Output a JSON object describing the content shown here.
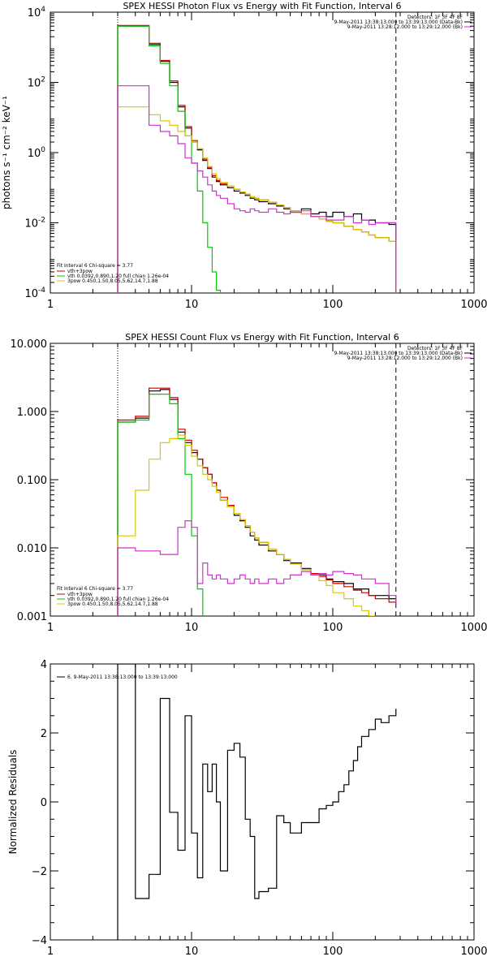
{
  "chart_data": [
    {
      "type": "line",
      "title": "SPEX HESSI Photon Flux vs Energy with Fit Function, Interval 6",
      "ylabel": "photons s⁻¹ cm⁻² keV⁻¹",
      "xlabel": "",
      "x_scale": "log",
      "y_scale": "log",
      "xlim": [
        1,
        1000
      ],
      "ylim": [
        0.0001,
        10000
      ],
      "x_ticks": [
        {
          "v": 1,
          "label": "1"
        },
        {
          "v": 10,
          "label": "10"
        },
        {
          "v": 100,
          "label": "100"
        },
        {
          "v": 1000,
          "label": "1000"
        }
      ],
      "y_ticks": [
        {
          "v": 0.0001,
          "base": "10",
          "exp": "-4"
        },
        {
          "v": 0.01,
          "base": "10",
          "exp": "-2"
        },
        {
          "v": 1,
          "base": "10",
          "exp": "0"
        },
        {
          "v": 100,
          "base": "10",
          "exp": "2"
        },
        {
          "v": 10000,
          "base": "10",
          "exp": "4"
        }
      ],
      "header_text": [
        "Detectors: 1F 3F 4F 8F",
        "9-May-2011 13:38:13.000 to 13:39:13.000 (Data-Bk)",
        "9-May-2011 13:28:12.000 to 13:29:12.000 (Bk)"
      ],
      "legend_title": "Fit Interval  6    Chi-square = 3.77",
      "legend": [
        {
          "label": "vth+3pow",
          "color": "#cc0000"
        },
        {
          "label": "vth 0.0392,0.890,1.20  full chian 1.26e-04",
          "color": "#00cc00"
        },
        {
          "label": "3pow 0.450,1.50,8.05,5.62,14.7,1.88",
          "color": "#d8c800"
        }
      ],
      "vlines": [
        {
          "x": 3.0,
          "style": "dotted"
        },
        {
          "x": 280,
          "style": "dashed"
        }
      ],
      "series": [
        {
          "name": "Data-Bk",
          "color": "#000000",
          "step": true,
          "x": [
            3,
            4,
            5,
            6,
            7,
            8,
            9,
            10,
            11,
            12,
            13,
            14,
            15,
            16,
            18,
            20,
            22,
            24,
            26,
            28,
            30,
            35,
            40,
            45,
            50,
            60,
            70,
            80,
            90,
            100,
            120,
            140,
            160,
            180,
            200,
            250,
            280
          ],
          "y": [
            4000,
            4000,
            1200,
            400,
            100,
            20,
            5,
            2,
            1.2,
            0.6,
            0.35,
            0.2,
            0.15,
            0.12,
            0.1,
            0.08,
            0.07,
            0.06,
            0.05,
            0.045,
            0.04,
            0.035,
            0.03,
            0.025,
            0.02,
            0.025,
            0.018,
            0.02,
            0.015,
            0.02,
            0.015,
            0.018,
            0.012,
            0.012,
            0.01,
            0.009,
            0.0001
          ]
        },
        {
          "name": "vth+3pow",
          "color": "#cc0000",
          "step": true,
          "x": [
            3,
            4,
            5,
            6,
            7,
            8,
            9,
            10,
            11,
            12,
            13,
            14,
            15,
            16,
            18,
            20,
            22,
            24,
            26,
            28,
            30,
            35,
            40,
            45,
            50,
            60,
            70,
            80,
            90,
            100,
            120,
            140,
            160,
            180,
            200,
            250,
            280
          ],
          "y": [
            4200,
            4200,
            1300,
            420,
            110,
            22,
            5.5,
            2.2,
            1.3,
            0.65,
            0.38,
            0.22,
            0.16,
            0.13,
            0.11,
            0.09,
            0.075,
            0.065,
            0.055,
            0.05,
            0.045,
            0.038,
            0.032,
            0.027,
            0.022,
            0.018,
            0.015,
            0.013,
            0.011,
            0.01,
            0.008,
            0.0065,
            0.0055,
            0.0045,
            0.0038,
            0.003,
            0.0001
          ]
        },
        {
          "name": "vth",
          "color": "#00cc00",
          "step": true,
          "x": [
            3,
            4,
            5,
            6,
            7,
            8,
            9,
            10,
            11,
            12,
            13,
            14,
            15,
            16
          ],
          "y": [
            4000,
            4000,
            1100,
            350,
            80,
            15,
            3,
            0.5,
            0.08,
            0.01,
            0.002,
            0.0004,
            0.00012,
            0.0001
          ]
        },
        {
          "name": "3pow",
          "color": "#d8c800",
          "step": true,
          "x": [
            3,
            4,
            5,
            6,
            7,
            8,
            9,
            10,
            11,
            12,
            13,
            14,
            15,
            16,
            18,
            20,
            22,
            24,
            26,
            28,
            30,
            35,
            40,
            45,
            50,
            60,
            70,
            80,
            90,
            100,
            120,
            140,
            160,
            180,
            200,
            250,
            280
          ],
          "y": [
            20,
            20,
            12,
            8,
            6,
            4,
            3,
            2,
            1.3,
            0.7,
            0.4,
            0.25,
            0.18,
            0.14,
            0.11,
            0.09,
            0.075,
            0.065,
            0.055,
            0.05,
            0.045,
            0.038,
            0.032,
            0.027,
            0.022,
            0.018,
            0.015,
            0.013,
            0.011,
            0.01,
            0.008,
            0.0065,
            0.0055,
            0.0045,
            0.0038,
            0.003,
            0.0001
          ]
        },
        {
          "name": "Bk",
          "color": "#cc33cc",
          "step": true,
          "x": [
            3,
            4,
            5,
            6,
            7,
            8,
            9,
            10,
            11,
            12,
            13,
            14,
            15,
            16,
            18,
            20,
            22,
            24,
            26,
            28,
            30,
            35,
            40,
            45,
            50,
            60,
            70,
            80,
            90,
            100,
            120,
            140,
            160,
            180,
            200,
            250,
            280
          ],
          "y": [
            80,
            80,
            6,
            4,
            3,
            1.8,
            0.7,
            0.5,
            0.3,
            0.2,
            0.12,
            0.08,
            0.06,
            0.05,
            0.035,
            0.025,
            0.022,
            0.02,
            0.025,
            0.022,
            0.02,
            0.025,
            0.02,
            0.018,
            0.02,
            0.022,
            0.015,
            0.015,
            0.012,
            0.012,
            0.015,
            0.01,
            0.012,
            0.009,
            0.01,
            0.01,
            0.0001
          ]
        }
      ]
    },
    {
      "type": "line",
      "title": "SPEX HESSI Count Flux vs Energy with Fit Function, Interval 6",
      "ylabel": "",
      "xlabel": "",
      "x_scale": "log",
      "y_scale": "log",
      "xlim": [
        1,
        1000
      ],
      "ylim": [
        0.001,
        10
      ],
      "x_ticks": [
        {
          "v": 1,
          "label": "1"
        },
        {
          "v": 10,
          "label": "10"
        },
        {
          "v": 100,
          "label": "100"
        },
        {
          "v": 1000,
          "label": "1000"
        }
      ],
      "y_ticks": [
        {
          "v": 0.001,
          "label": "0.001"
        },
        {
          "v": 0.01,
          "label": "0.010"
        },
        {
          "v": 0.1,
          "label": "0.100"
        },
        {
          "v": 1,
          "label": "1.000"
        },
        {
          "v": 10,
          "label": "10.000"
        }
      ],
      "header_text": [
        "Detectors: 1F 3F 4F 8F",
        "9-May-2011 13:38:13.000 to 13:39:13.000 (Data-Bk)",
        "9-May-2011 13:28:12.000 to 13:29:12.000 (Bk)"
      ],
      "legend_title": "Fit Interval  6    Chi-square = 3.77",
      "legend": [
        {
          "label": "vth+3pow",
          "color": "#cc0000"
        },
        {
          "label": "vth 0.0392,0.890,1.20  full chian 1.26e-04",
          "color": "#00cc00"
        },
        {
          "label": "3pow 0.450,1.50,8.05,5.62,14.7,1.88",
          "color": "#d8c800"
        }
      ],
      "vlines": [
        {
          "x": 3.0,
          "style": "dotted"
        },
        {
          "x": 280,
          "style": "dashed"
        }
      ],
      "series": [
        {
          "name": "Data-Bk",
          "color": "#000000",
          "step": true,
          "x": [
            3,
            4,
            5,
            6,
            7,
            8,
            9,
            10,
            11,
            12,
            13,
            14,
            15,
            16,
            18,
            20,
            22,
            24,
            26,
            28,
            30,
            35,
            40,
            45,
            50,
            60,
            70,
            80,
            90,
            100,
            120,
            140,
            160,
            180,
            200,
            250,
            280
          ],
          "y": [
            0.7,
            0.8,
            2.0,
            2.1,
            1.5,
            0.5,
            0.35,
            0.25,
            0.2,
            0.15,
            0.12,
            0.09,
            0.07,
            0.05,
            0.04,
            0.03,
            0.025,
            0.02,
            0.015,
            0.013,
            0.011,
            0.009,
            0.008,
            0.0065,
            0.006,
            0.005,
            0.004,
            0.004,
            0.0035,
            0.0032,
            0.003,
            0.0025,
            0.0025,
            0.002,
            0.002,
            0.0018,
            0.0015
          ]
        },
        {
          "name": "vth+3pow",
          "color": "#cc0000",
          "step": true,
          "x": [
            3,
            4,
            5,
            6,
            7,
            8,
            9,
            10,
            11,
            12,
            13,
            14,
            15,
            16,
            18,
            20,
            22,
            24,
            26,
            28,
            30,
            35,
            40,
            45,
            50,
            60,
            70,
            80,
            90,
            100,
            120,
            140,
            160,
            180,
            200,
            250,
            280
          ],
          "y": [
            0.75,
            0.85,
            2.2,
            2.2,
            1.6,
            0.55,
            0.38,
            0.27,
            0.2,
            0.15,
            0.12,
            0.09,
            0.07,
            0.055,
            0.042,
            0.032,
            0.026,
            0.021,
            0.017,
            0.014,
            0.012,
            0.0095,
            0.008,
            0.0068,
            0.0058,
            0.0048,
            0.0042,
            0.0038,
            0.0034,
            0.003,
            0.0027,
            0.0024,
            0.0022,
            0.002,
            0.0018,
            0.0016,
            0.0015
          ]
        },
        {
          "name": "vth",
          "color": "#00cc00",
          "step": true,
          "x": [
            3,
            4,
            5,
            6,
            7,
            8,
            9,
            10,
            11,
            12
          ],
          "y": [
            0.7,
            0.75,
            1.8,
            1.8,
            1.3,
            0.4,
            0.12,
            0.015,
            0.0025,
            0.001
          ]
        },
        {
          "name": "3pow",
          "color": "#d8c800",
          "step": true,
          "x": [
            3,
            4,
            5,
            6,
            7,
            8,
            9,
            10,
            11,
            12,
            13,
            14,
            15,
            16,
            18,
            20,
            22,
            24,
            26,
            28,
            30,
            35,
            40,
            45,
            50,
            60,
            70,
            80,
            90,
            100,
            120,
            140,
            160,
            180,
            200
          ],
          "y": [
            0.015,
            0.07,
            0.2,
            0.35,
            0.4,
            0.45,
            0.32,
            0.22,
            0.16,
            0.12,
            0.1,
            0.08,
            0.065,
            0.05,
            0.04,
            0.032,
            0.026,
            0.021,
            0.017,
            0.014,
            0.012,
            0.0095,
            0.008,
            0.0068,
            0.0058,
            0.0048,
            0.004,
            0.0033,
            0.0028,
            0.0022,
            0.0018,
            0.0014,
            0.0012,
            0.001,
            0.001
          ]
        },
        {
          "name": "Bk",
          "color": "#cc33cc",
          "step": true,
          "x": [
            3,
            4,
            5,
            6,
            7,
            8,
            9,
            10,
            11,
            12,
            13,
            14,
            15,
            16,
            18,
            20,
            22,
            24,
            26,
            28,
            30,
            35,
            40,
            45,
            50,
            60,
            70,
            80,
            90,
            100,
            120,
            140,
            160,
            180,
            200,
            250,
            280
          ],
          "y": [
            0.01,
            0.009,
            0.009,
            0.008,
            0.008,
            0.02,
            0.025,
            0.02,
            0.003,
            0.006,
            0.004,
            0.0035,
            0.004,
            0.0035,
            0.003,
            0.0035,
            0.004,
            0.0035,
            0.003,
            0.0035,
            0.003,
            0.0035,
            0.003,
            0.0035,
            0.004,
            0.0045,
            0.004,
            0.0042,
            0.004,
            0.0045,
            0.0042,
            0.004,
            0.0035,
            0.0035,
            0.003,
            0.002,
            0.0015
          ]
        }
      ]
    },
    {
      "type": "line",
      "title": "",
      "ylabel": "Normalized Residuals",
      "xlabel": "",
      "x_scale": "log",
      "y_scale": "linear",
      "xlim": [
        1,
        1000
      ],
      "ylim": [
        -4,
        4
      ],
      "x_ticks": [
        {
          "v": 1,
          "label": "1"
        },
        {
          "v": 10,
          "label": "10"
        },
        {
          "v": 100,
          "label": "100"
        },
        {
          "v": 1000,
          "label": "1000"
        }
      ],
      "y_ticks": [
        {
          "v": -4,
          "label": "−4"
        },
        {
          "v": -2,
          "label": "−2"
        },
        {
          "v": 0,
          "label": "0"
        },
        {
          "v": 2,
          "label": "2"
        },
        {
          "v": 4,
          "label": "4"
        }
      ],
      "legend_title": "",
      "legend": [
        {
          "label": "6.  9-May-2011 13:38:13.000 to 13:39:13.000",
          "color": "#000000"
        }
      ],
      "series": [
        {
          "name": "residuals",
          "color": "#000000",
          "step": true,
          "x": [
            3,
            4,
            5,
            6,
            7,
            8,
            9,
            10,
            11,
            12,
            13,
            14,
            15,
            16,
            18,
            20,
            22,
            24,
            26,
            28,
            30,
            35,
            40,
            45,
            50,
            60,
            70,
            80,
            90,
            100,
            110,
            120,
            130,
            140,
            150,
            160,
            180,
            200,
            220,
            250,
            280
          ],
          "y": [
            4,
            -2.8,
            -2.1,
            3.0,
            -0.3,
            -1.4,
            2.5,
            -0.9,
            -2.2,
            1.1,
            0.3,
            1.1,
            0.0,
            -2.0,
            1.5,
            1.7,
            1.3,
            -0.5,
            -1.0,
            -2.8,
            -2.6,
            -2.5,
            -0.4,
            -0.6,
            -0.9,
            -0.6,
            -0.6,
            -0.2,
            -0.1,
            0.0,
            0.3,
            0.5,
            0.9,
            1.2,
            1.6,
            1.9,
            2.1,
            2.4,
            2.3,
            2.5,
            2.7
          ]
        }
      ]
    }
  ]
}
